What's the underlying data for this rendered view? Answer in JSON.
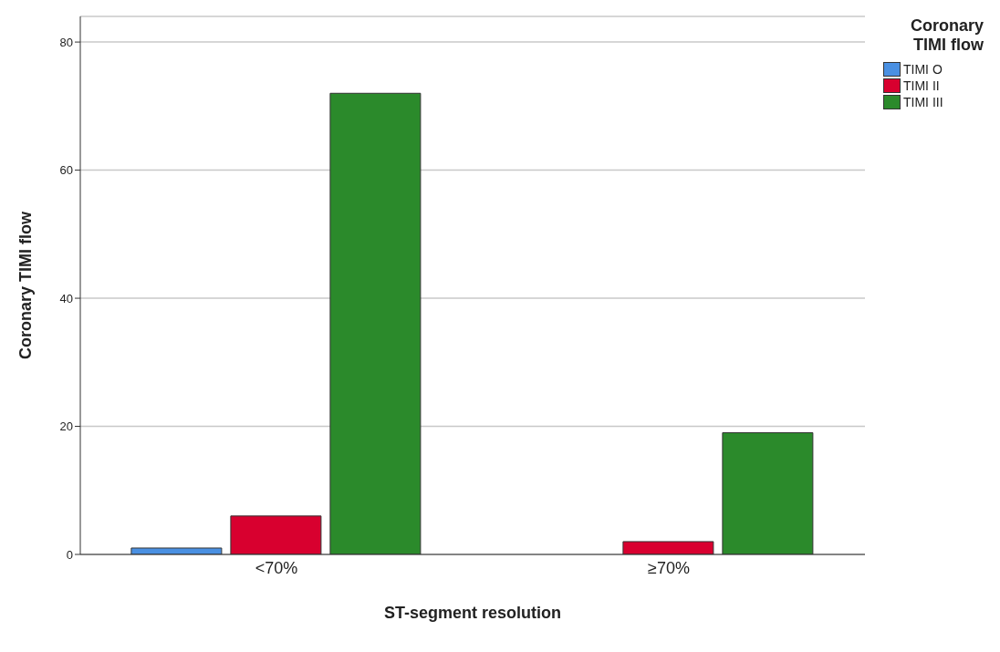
{
  "chart_data": {
    "type": "bar",
    "xlabel": "ST-segment resolution",
    "ylabel": "Coronary TIMI flow",
    "legend_title": "Coronary TIMI flow",
    "categories": [
      "<70%",
      "≥70%"
    ],
    "series": [
      {
        "name": "TIMI O",
        "color": "#4a90e2",
        "values": [
          1,
          null
        ]
      },
      {
        "name": "TIMI II",
        "color": "#d8002f",
        "values": [
          6,
          2
        ]
      },
      {
        "name": "TIMI III",
        "color": "#2b8a2b",
        "values": [
          72,
          19
        ]
      }
    ],
    "ylim": [
      0,
      84
    ],
    "yticks": [
      0,
      20,
      40,
      60,
      80
    ],
    "grid": "y",
    "legend": "top right"
  }
}
